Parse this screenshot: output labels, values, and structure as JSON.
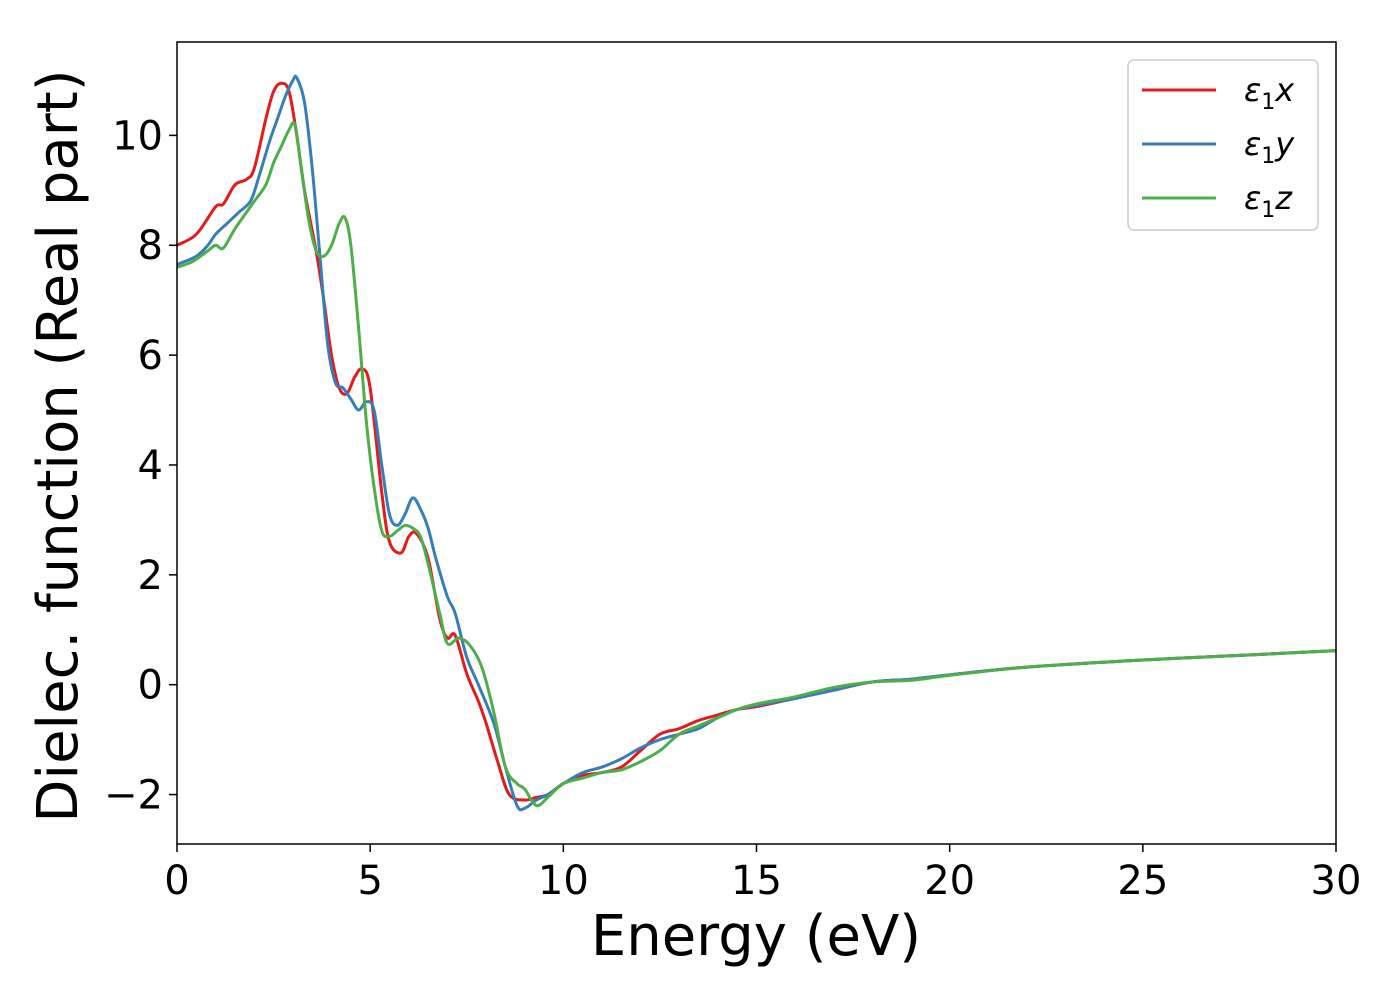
{
  "chart_data": {
    "type": "line",
    "xlabel": "Energy (eV)",
    "ylabel": "Dielec. function (Real part)",
    "xlim": [
      0,
      30
    ],
    "ylim": [
      -2.9,
      11.7
    ],
    "xticks": [
      0,
      5,
      10,
      15,
      20,
      25,
      30
    ],
    "yticks": [
      -2,
      0,
      2,
      4,
      6,
      8,
      10
    ],
    "xtick_labels": [
      "0",
      "5",
      "10",
      "15",
      "20",
      "25",
      "30"
    ],
    "ytick_labels": [
      "−2",
      "0",
      "2",
      "4",
      "6",
      "8",
      "10"
    ],
    "grid": false,
    "legend_position": "top-right",
    "series": [
      {
        "name": "ε1x",
        "symbol": "ε",
        "subscript": "1",
        "suffix": "x",
        "color": "#e41a1c",
        "x": [
          0,
          0.5,
          1.0,
          1.2,
          1.5,
          1.8,
          2.0,
          2.3,
          2.5,
          2.7,
          2.9,
          3.1,
          3.3,
          3.6,
          3.8,
          4.0,
          4.2,
          4.4,
          4.6,
          4.8,
          5.0,
          5.3,
          5.5,
          5.8,
          6.0,
          6.2,
          6.5,
          6.8,
          7.0,
          7.2,
          7.5,
          7.8,
          8.0,
          8.3,
          8.6,
          9.0,
          9.3,
          9.6,
          10.0,
          10.5,
          11.0,
          11.5,
          12.0,
          12.5,
          13.0,
          13.5,
          14.0,
          14.5,
          15.0,
          16.0,
          17.0,
          18.0,
          19.0,
          20.0,
          22.0,
          25.0,
          28.0,
          30.0
        ],
        "values": [
          8.0,
          8.2,
          8.7,
          8.75,
          9.1,
          9.2,
          9.4,
          10.3,
          10.8,
          10.95,
          10.8,
          10.0,
          9.0,
          7.9,
          7.0,
          6.0,
          5.4,
          5.3,
          5.6,
          5.75,
          5.4,
          3.5,
          2.6,
          2.4,
          2.7,
          2.75,
          2.3,
          1.2,
          0.85,
          0.9,
          0.2,
          -0.3,
          -0.7,
          -1.4,
          -2.0,
          -2.1,
          -2.05,
          -2.0,
          -1.8,
          -1.65,
          -1.6,
          -1.5,
          -1.2,
          -0.9,
          -0.8,
          -0.65,
          -0.55,
          -0.45,
          -0.4,
          -0.25,
          -0.1,
          0.05,
          0.1,
          0.18,
          0.32,
          0.45,
          0.55,
          0.62
        ]
      },
      {
        "name": "ε1y",
        "symbol": "ε",
        "subscript": "1",
        "suffix": "y",
        "color": "#377eb8",
        "x": [
          0,
          0.5,
          0.8,
          1.0,
          1.3,
          1.6,
          1.9,
          2.1,
          2.4,
          2.6,
          2.8,
          3.0,
          3.1,
          3.3,
          3.5,
          3.7,
          3.9,
          4.1,
          4.3,
          4.5,
          4.7,
          4.9,
          5.1,
          5.3,
          5.5,
          5.7,
          5.9,
          6.1,
          6.3,
          6.5,
          6.7,
          7.0,
          7.2,
          7.5,
          7.8,
          8.2,
          8.5,
          8.8,
          9.0,
          9.3,
          9.6,
          10.0,
          10.5,
          11.0,
          11.5,
          12.0,
          12.5,
          13.0,
          13.5,
          14.0,
          14.5,
          15.0,
          16.0,
          17.0,
          18.0,
          19.0,
          20.0,
          22.0,
          25.0,
          28.0,
          30.0
        ],
        "values": [
          7.65,
          7.8,
          8.0,
          8.2,
          8.4,
          8.6,
          8.8,
          9.2,
          9.9,
          10.3,
          10.7,
          11.0,
          11.05,
          10.6,
          9.4,
          7.8,
          6.2,
          5.5,
          5.4,
          5.2,
          5.0,
          5.15,
          5.0,
          4.0,
          3.1,
          2.9,
          3.1,
          3.4,
          3.2,
          2.85,
          2.3,
          1.6,
          1.3,
          0.5,
          0.0,
          -0.7,
          -1.5,
          -2.2,
          -2.25,
          -2.1,
          -2.0,
          -1.8,
          -1.6,
          -1.5,
          -1.35,
          -1.15,
          -1.0,
          -0.9,
          -0.8,
          -0.6,
          -0.45,
          -0.38,
          -0.25,
          -0.1,
          0.05,
          0.1,
          0.18,
          0.32,
          0.45,
          0.55,
          0.62
        ]
      },
      {
        "name": "ε1z",
        "symbol": "ε",
        "subscript": "1",
        "suffix": "z",
        "color": "#4daf4a",
        "x": [
          0,
          0.4,
          0.8,
          1.0,
          1.2,
          1.5,
          1.8,
          2.0,
          2.3,
          2.5,
          2.7,
          2.9,
          3.05,
          3.2,
          3.4,
          3.6,
          3.8,
          4.0,
          4.2,
          4.35,
          4.5,
          4.7,
          4.9,
          5.1,
          5.3,
          5.5,
          5.7,
          5.9,
          6.1,
          6.3,
          6.5,
          6.8,
          7.0,
          7.3,
          7.6,
          7.9,
          8.2,
          8.5,
          8.8,
          9.0,
          9.3,
          9.6,
          10.0,
          10.5,
          11.0,
          11.5,
          12.0,
          12.5,
          13.0,
          13.5,
          14.0,
          14.5,
          15.0,
          16.0,
          17.0,
          18.0,
          19.0,
          20.0,
          22.0,
          25.0,
          28.0,
          30.0
        ],
        "values": [
          7.6,
          7.7,
          7.9,
          8.0,
          7.95,
          8.3,
          8.6,
          8.8,
          9.1,
          9.5,
          9.8,
          10.1,
          10.2,
          9.5,
          8.5,
          7.9,
          7.8,
          8.0,
          8.4,
          8.5,
          8.0,
          6.5,
          4.8,
          3.6,
          2.8,
          2.7,
          2.8,
          2.9,
          2.85,
          2.7,
          2.2,
          1.3,
          0.75,
          0.85,
          0.7,
          0.3,
          -0.5,
          -1.5,
          -1.8,
          -1.9,
          -2.2,
          -2.05,
          -1.8,
          -1.7,
          -1.6,
          -1.55,
          -1.4,
          -1.2,
          -0.9,
          -0.75,
          -0.6,
          -0.45,
          -0.35,
          -0.22,
          -0.05,
          0.05,
          0.08,
          0.17,
          0.32,
          0.45,
          0.55,
          0.62
        ]
      }
    ]
  }
}
